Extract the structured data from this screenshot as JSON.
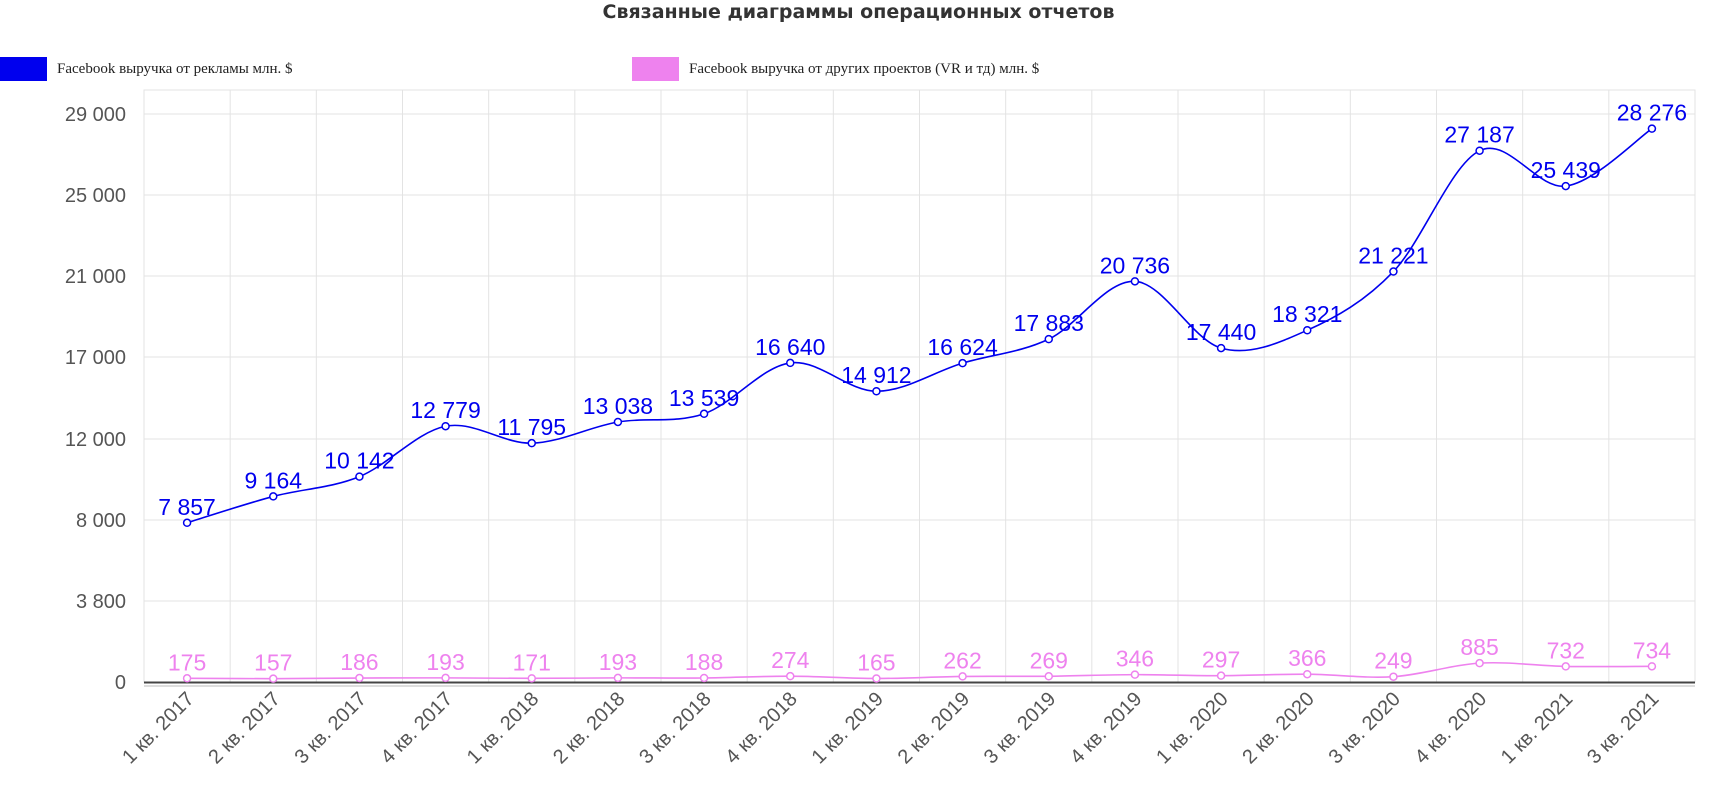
{
  "title": "Связанные диаграммы операционных отчетов",
  "legend": [
    {
      "label": "Facebook выручка от рекламы млн. $",
      "color": "#0000ee"
    },
    {
      "label": "Facebook выручка от других проектов (VR и тд) млн. $",
      "color": "#ee82ee"
    }
  ],
  "chart_data": {
    "type": "line",
    "title": "Связанные диаграммы операционных отчетов",
    "xlabel": "",
    "ylabel": "",
    "categories": [
      "1 кв. 2017",
      "2 кв. 2017",
      "3 кв. 2017",
      "4 кв. 2017",
      "1 кв. 2018",
      "2 кв. 2018",
      "3 кв. 2018",
      "4 кв. 2018",
      "1 кв. 2019",
      "2 кв. 2019",
      "3 кв. 2019",
      "4 кв. 2019",
      "1 кв. 2020",
      "2 кв. 2020",
      "3 кв. 2020",
      "4 кв. 2020",
      "1 кв. 2021",
      "3 кв. 2021"
    ],
    "y_ticks": [
      0,
      3800,
      8000,
      12000,
      17000,
      21000,
      25000,
      29000
    ],
    "y_tick_labels": [
      "0",
      "3 800",
      "8 000",
      "12 000",
      "17 000",
      "21 000",
      "25 000",
      "29 000"
    ],
    "ylim": [
      0,
      29000
    ],
    "grid": true,
    "legend_position": "top",
    "series": [
      {
        "name": "Facebook выручка от рекламы млн. $",
        "color": "#0000ee",
        "values": [
          7857,
          9164,
          10142,
          12779,
          11795,
          13038,
          13539,
          16640,
          14912,
          16624,
          17883,
          20736,
          17440,
          18321,
          21221,
          27187,
          25439,
          28276
        ],
        "labels": [
          "7 857",
          "9 164",
          "10 142",
          "12 779",
          "11 795",
          "13 038",
          "13 539",
          "16 640",
          "14 912",
          "16 624",
          "17 883",
          "20 736",
          "17 440",
          "18 321",
          "21 221",
          "27 187",
          "25 439",
          "28 276"
        ]
      },
      {
        "name": "Facebook выручка от других проектов (VR и тд) млн. $",
        "color": "#ee82ee",
        "values": [
          175,
          157,
          186,
          193,
          171,
          193,
          188,
          274,
          165,
          262,
          269,
          346,
          297,
          366,
          249,
          885,
          732,
          734
        ],
        "labels": [
          "175",
          "157",
          "186",
          "193",
          "171",
          "193",
          "188",
          "274",
          "165",
          "262",
          "269",
          "346",
          "297",
          "366",
          "249",
          "885",
          "732",
          "734"
        ]
      }
    ]
  }
}
